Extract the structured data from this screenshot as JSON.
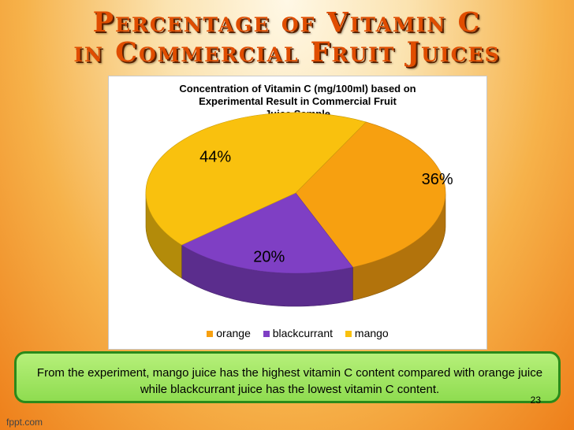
{
  "slide": {
    "title_line1": "Percentage of Vitamin C",
    "title_line2": "in Commercial Fruit Juices",
    "caption": "From the experiment, mango juice has the highest vitamin C content compared with orange juice while blackcurrant juice has the lowest vitamin C content.",
    "page_number": "23",
    "footer": "fppt.com"
  },
  "chart_data": {
    "type": "pie",
    "title_lines": [
      "Concentration of Vitamin C (mg/100ml)  based on",
      "Experimental Result in Commercial Fruit",
      "Juice Sample"
    ],
    "categories": [
      "orange",
      "blackcurrant",
      "mango"
    ],
    "values": [
      36,
      20,
      44
    ],
    "data_labels": [
      "36%",
      "20%",
      "44%"
    ],
    "colors": [
      "#f7a010",
      "#7f3fc4",
      "#f9c10e"
    ],
    "legend_position": "bottom"
  }
}
